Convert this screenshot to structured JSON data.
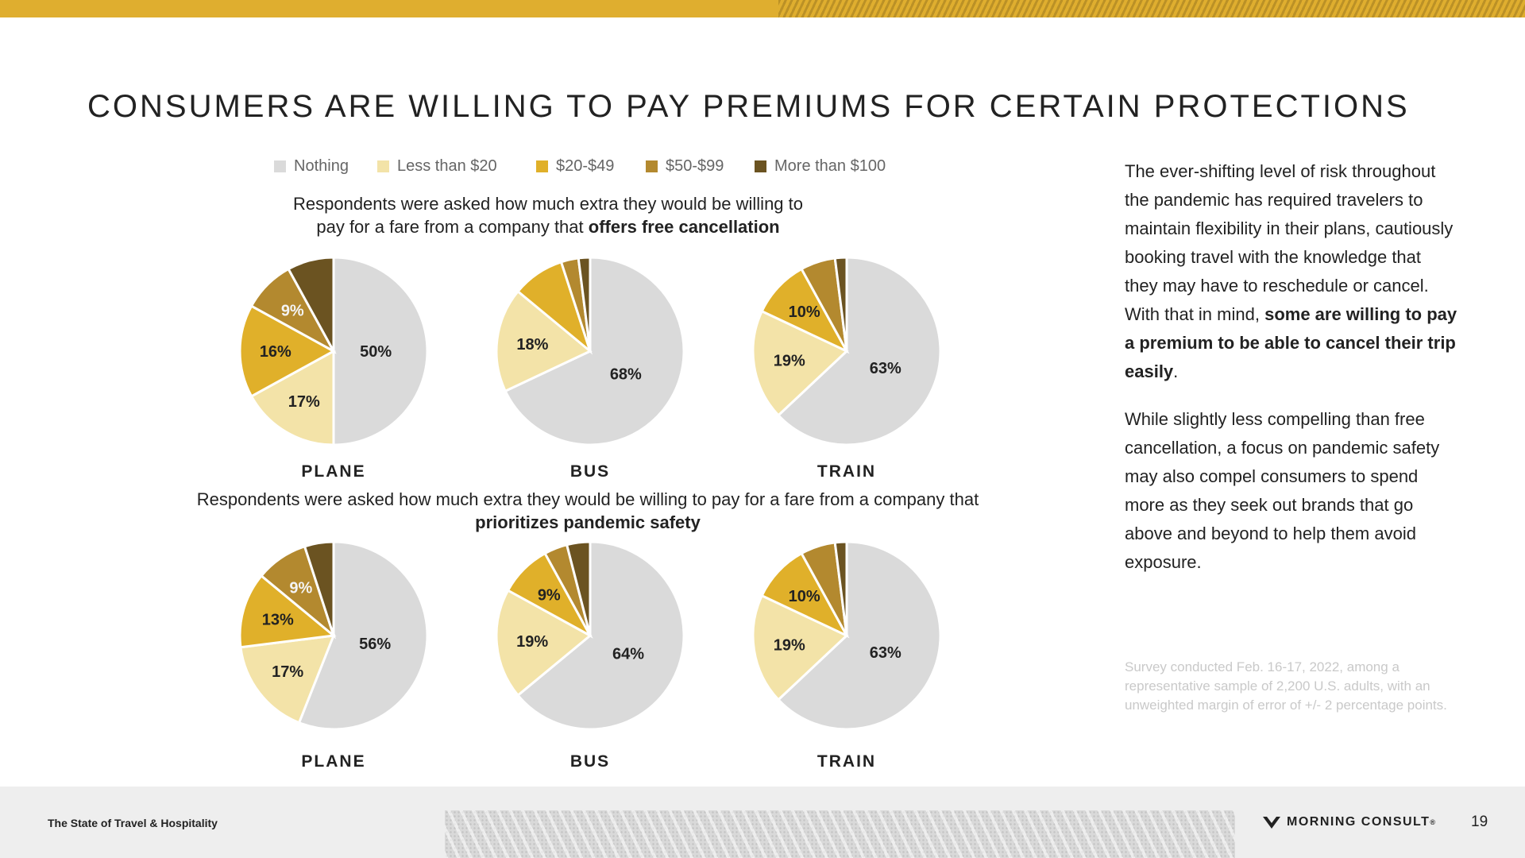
{
  "title": "CONSUMERS ARE WILLING TO PAY PREMIUMS FOR CERTAIN PROTECTIONS",
  "legend": [
    {
      "label": "Nothing",
      "color": "#dadada"
    },
    {
      "label": "Less than $20",
      "color": "#f3e3a8"
    },
    {
      "label": "$20-$49",
      "color": "#e0b02a"
    },
    {
      "label": "$50-$99",
      "color": "#b3892f"
    },
    {
      "label": "More than $100",
      "color": "#6b5321"
    }
  ],
  "question1": {
    "line1": "Respondents were asked how much extra they would be willing to",
    "line2_plain": "pay for a fare from a company that ",
    "line2_bold": "offers free cancellation"
  },
  "question2": {
    "line1": "Respondents were asked how much extra they would be willing to pay for a fare from a company that",
    "line2_bold": "prioritizes pandemic safety"
  },
  "chart_data": [
    {
      "type": "pie",
      "group": "offers free cancellation",
      "title": "PLANE",
      "categories": [
        "Nothing",
        "Less than $20",
        "$20-$49",
        "$50-$99",
        "More than $100"
      ],
      "values": [
        50,
        17,
        16,
        9,
        8
      ],
      "labels": [
        "50%",
        "17%",
        "16%",
        "9%",
        ""
      ]
    },
    {
      "type": "pie",
      "group": "offers free cancellation",
      "title": "BUS",
      "categories": [
        "Nothing",
        "Less than $20",
        "$20-$49",
        "$50-$99",
        "More than $100"
      ],
      "values": [
        68,
        18,
        9,
        3,
        2
      ],
      "labels": [
        "68%",
        "18%",
        "",
        "",
        ""
      ]
    },
    {
      "type": "pie",
      "group": "offers free cancellation",
      "title": "TRAIN",
      "categories": [
        "Nothing",
        "Less than $20",
        "$20-$49",
        "$50-$99",
        "More than $100"
      ],
      "values": [
        63,
        19,
        10,
        6,
        2
      ],
      "labels": [
        "63%",
        "19%",
        "10%",
        "",
        ""
      ]
    },
    {
      "type": "pie",
      "group": "prioritizes pandemic safety",
      "title": "PLANE",
      "categories": [
        "Nothing",
        "Less than $20",
        "$20-$49",
        "$50-$99",
        "More than $100"
      ],
      "values": [
        56,
        17,
        13,
        9,
        5
      ],
      "labels": [
        "56%",
        "17%",
        "13%",
        "9%",
        ""
      ]
    },
    {
      "type": "pie",
      "group": "prioritizes pandemic safety",
      "title": "BUS",
      "categories": [
        "Nothing",
        "Less than $20",
        "$20-$49",
        "$50-$99",
        "More than $100"
      ],
      "values": [
        64,
        19,
        9,
        4,
        4
      ],
      "labels": [
        "64%",
        "19%",
        "9%",
        "",
        ""
      ]
    },
    {
      "type": "pie",
      "group": "prioritizes pandemic safety",
      "title": "TRAIN",
      "categories": [
        "Nothing",
        "Less than $20",
        "$20-$49",
        "$50-$99",
        "More than $100"
      ],
      "values": [
        63,
        19,
        10,
        6,
        2
      ],
      "labels": [
        "63%",
        "19%",
        "10%",
        "",
        ""
      ]
    }
  ],
  "side": {
    "p1_a": "The ever-shifting level of risk throughout the pandemic has required travelers to maintain flexibility in their plans, cautiously booking travel with the knowledge that they may have to reschedule or cancel. With that in mind, ",
    "p1_bold": "some are willing to pay a premium to be able to cancel their trip easily",
    "p1_end": ".",
    "p2": "While slightly less compelling than free cancellation, a focus on pandemic safety may also compel consumers to spend more as they seek out brands that go above and beyond to help them avoid exposure."
  },
  "note": "Survey conducted Feb. 16-17, 2022, among a representative sample of 2,200 U.S. adults, with an unweighted margin of error of +/- 2 percentage points.",
  "footer": {
    "left": "The State of Travel & Hospitality",
    "logo": "MORNING CONSULT",
    "logo_mark": "®",
    "page": "19"
  }
}
